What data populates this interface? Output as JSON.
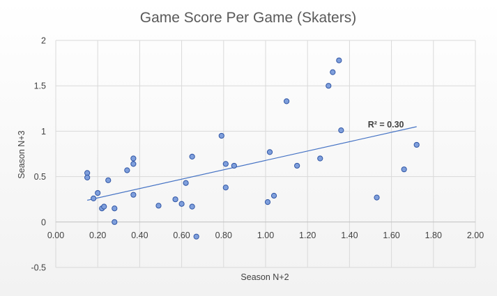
{
  "chart_data": {
    "type": "scatter",
    "title": "Game Score Per Game (Skaters)",
    "xlabel": "Season N+2",
    "ylabel": "Season N+3",
    "xlim": [
      0,
      2
    ],
    "ylim": [
      -0.5,
      2
    ],
    "x_ticks": [
      "0.00",
      "0.20",
      "0.40",
      "0.60",
      "0.80",
      "1.00",
      "1.20",
      "1.40",
      "1.60",
      "1.80",
      "2.00"
    ],
    "y_ticks": [
      "-0.5",
      "0",
      "0.5",
      "1",
      "1.5",
      "2"
    ],
    "grid": true,
    "trendline": {
      "type": "linear",
      "x": [
        0.15,
        1.72
      ],
      "y": [
        0.24,
        1.05
      ],
      "label": "R² = 0.30"
    },
    "points": [
      {
        "x": 0.15,
        "y": 0.54
      },
      {
        "x": 0.15,
        "y": 0.49
      },
      {
        "x": 0.18,
        "y": 0.26
      },
      {
        "x": 0.2,
        "y": 0.32
      },
      {
        "x": 0.22,
        "y": 0.15
      },
      {
        "x": 0.23,
        "y": 0.17
      },
      {
        "x": 0.25,
        "y": 0.46
      },
      {
        "x": 0.28,
        "y": 0.15
      },
      {
        "x": 0.28,
        "y": 0.0
      },
      {
        "x": 0.34,
        "y": 0.57
      },
      {
        "x": 0.37,
        "y": 0.7
      },
      {
        "x": 0.37,
        "y": 0.64
      },
      {
        "x": 0.37,
        "y": 0.3
      },
      {
        "x": 0.49,
        "y": 0.18
      },
      {
        "x": 0.57,
        "y": 0.25
      },
      {
        "x": 0.6,
        "y": 0.2
      },
      {
        "x": 0.62,
        "y": 0.43
      },
      {
        "x": 0.65,
        "y": 0.72
      },
      {
        "x": 0.65,
        "y": 0.17
      },
      {
        "x": 0.67,
        "y": -0.16
      },
      {
        "x": 0.79,
        "y": 0.95
      },
      {
        "x": 0.81,
        "y": 0.64
      },
      {
        "x": 0.81,
        "y": 0.38
      },
      {
        "x": 0.85,
        "y": 0.62
      },
      {
        "x": 1.01,
        "y": 0.22
      },
      {
        "x": 1.02,
        "y": 0.77
      },
      {
        "x": 1.04,
        "y": 0.29
      },
      {
        "x": 1.1,
        "y": 1.33
      },
      {
        "x": 1.15,
        "y": 0.62
      },
      {
        "x": 1.26,
        "y": 0.7
      },
      {
        "x": 1.3,
        "y": 1.5
      },
      {
        "x": 1.32,
        "y": 1.65
      },
      {
        "x": 1.35,
        "y": 1.78
      },
      {
        "x": 1.36,
        "y": 1.01
      },
      {
        "x": 1.53,
        "y": 0.27
      },
      {
        "x": 1.66,
        "y": 0.58
      },
      {
        "x": 1.72,
        "y": 0.85
      }
    ],
    "colors": {
      "point_fill": "#7f9fdc",
      "point_stroke": "#2f55a4",
      "trendline": "#4472c4"
    }
  }
}
